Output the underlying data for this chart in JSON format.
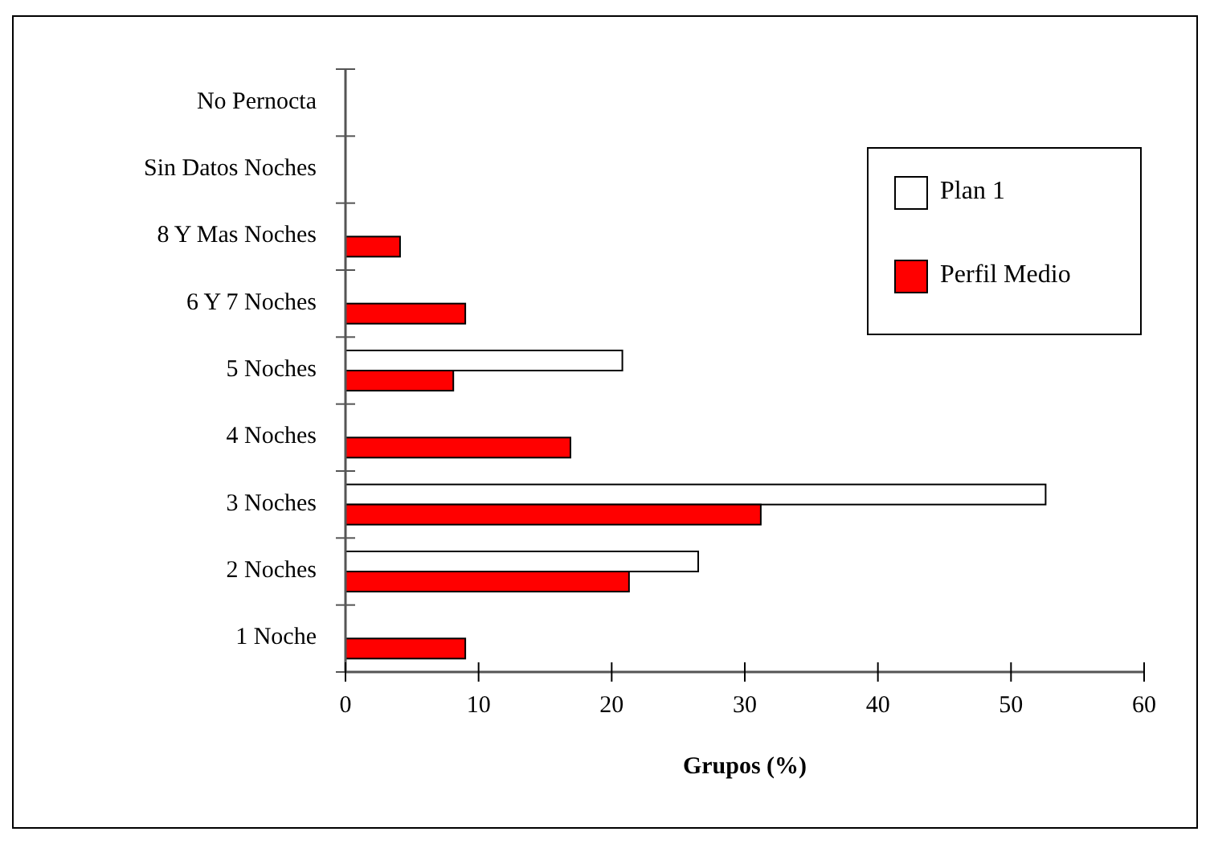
{
  "chart_data": {
    "type": "bar",
    "orientation": "horizontal",
    "xlabel": "Grupos (%)",
    "categories": [
      "No Pernocta",
      "Sin Datos Noches",
      "8 Y Mas Noches",
      "6 Y 7 Noches",
      "5 Noches",
      "4 Noches",
      "3 Noches",
      "2 Noches",
      "1 Noche"
    ],
    "series": [
      {
        "name": "Plan 1",
        "color": "#ffffff",
        "values": [
          null,
          null,
          null,
          null,
          20.8,
          null,
          52.6,
          26.5,
          null
        ]
      },
      {
        "name": "Perfil Medio",
        "color": "#ff0000",
        "values": [
          null,
          null,
          4.1,
          9.0,
          8.1,
          16.9,
          31.2,
          21.3,
          9.0
        ]
      }
    ],
    "xlim": [
      0,
      60
    ],
    "xticks": [
      0,
      10,
      20,
      30,
      40,
      50,
      60
    ],
    "grid": false,
    "legend": "top right"
  }
}
